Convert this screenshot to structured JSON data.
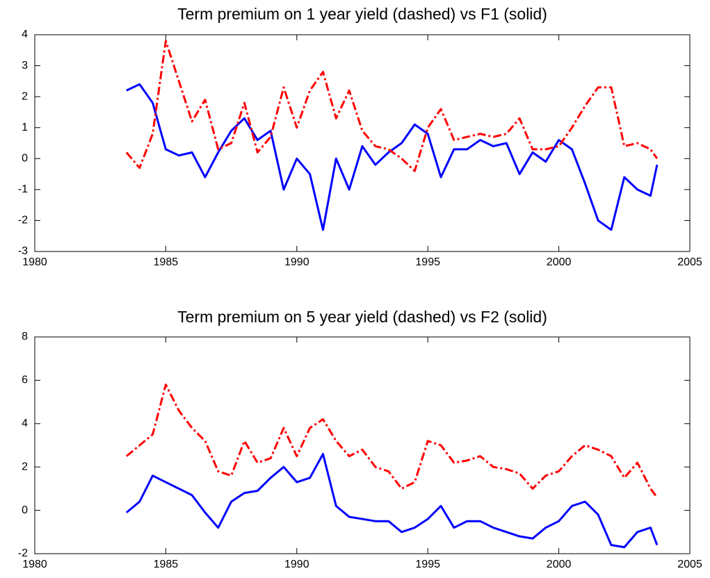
{
  "chart_data": [
    {
      "type": "line",
      "title": "Term premium on 1 year yield (dashed) vs F1 (solid)",
      "x": [
        1983.5,
        1984,
        1984.5,
        1985,
        1985.5,
        1986,
        1986.5,
        1987,
        1987.5,
        1988,
        1988.5,
        1989,
        1989.5,
        1990,
        1990.5,
        1991,
        1991.5,
        1992,
        1992.5,
        1993,
        1993.5,
        1994,
        1994.5,
        1995,
        1995.5,
        1996,
        1996.5,
        1997,
        1997.5,
        1998,
        1998.5,
        1999,
        1999.5,
        2000,
        2000.5,
        2001,
        2001.5,
        2002,
        2002.5,
        2003,
        2003.5,
        2003.75
      ],
      "series": [
        {
          "color": "#0000ff",
          "linestyle": "solid",
          "values": [
            2.2,
            2.4,
            1.8,
            0.3,
            0.1,
            0.2,
            -0.6,
            0.2,
            0.9,
            1.3,
            0.6,
            0.9,
            -1.0,
            0.0,
            -0.5,
            -2.3,
            0.0,
            -1.0,
            0.4,
            -0.2,
            0.2,
            0.5,
            1.1,
            0.8,
            -0.6,
            0.3,
            0.3,
            0.6,
            0.4,
            0.5,
            -0.5,
            0.2,
            -0.1,
            0.6,
            0.3,
            -0.8,
            -2.0,
            -2.3,
            -0.6,
            -1.0,
            -1.2,
            -0.2
          ]
        },
        {
          "color": "#ff0000",
          "linestyle": "dashdot",
          "values": [
            0.2,
            -0.3,
            0.8,
            3.8,
            2.5,
            1.2,
            1.9,
            0.3,
            0.5,
            1.8,
            0.2,
            0.7,
            2.3,
            1.0,
            2.2,
            2.8,
            1.3,
            2.2,
            0.9,
            0.4,
            0.3,
            0.0,
            -0.4,
            1.0,
            1.6,
            0.6,
            0.7,
            0.8,
            0.7,
            0.8,
            1.3,
            0.3,
            0.3,
            0.4,
            1.0,
            1.7,
            2.3,
            2.3,
            0.4,
            0.5,
            0.3,
            0.0
          ]
        }
      ],
      "xlim": [
        1980,
        2005
      ],
      "xticks": [
        1980,
        1985,
        1990,
        1995,
        2000,
        2005
      ],
      "ylim": [
        -3,
        4
      ],
      "yticks": [
        -3,
        -2,
        -1,
        0,
        1,
        2,
        3,
        4
      ]
    },
    {
      "type": "line",
      "title": "Term premium on 5 year yield (dashed) vs F2 (solid)",
      "x": [
        1983.5,
        1984,
        1984.5,
        1985,
        1985.5,
        1986,
        1986.5,
        1987,
        1987.5,
        1988,
        1988.5,
        1989,
        1989.5,
        1990,
        1990.5,
        1991,
        1991.5,
        1992,
        1992.5,
        1993,
        1993.5,
        1994,
        1994.5,
        1995,
        1995.5,
        1996,
        1996.5,
        1997,
        1997.5,
        1998,
        1998.5,
        1999,
        1999.5,
        2000,
        2000.5,
        2001,
        2001.5,
        2002,
        2002.5,
        2003,
        2003.5,
        2003.75
      ],
      "series": [
        {
          "color": "#0000ff",
          "linestyle": "solid",
          "values": [
            -0.1,
            0.4,
            1.6,
            1.3,
            1.0,
            0.7,
            -0.1,
            -0.8,
            0.4,
            0.8,
            0.9,
            1.5,
            2.0,
            1.3,
            1.5,
            2.6,
            0.2,
            -0.3,
            -0.4,
            -0.5,
            -0.5,
            -1.0,
            -0.8,
            -0.4,
            0.2,
            -0.8,
            -0.5,
            -0.5,
            -0.8,
            -1.0,
            -1.2,
            -1.3,
            -0.8,
            -0.5,
            0.2,
            0.4,
            -0.2,
            -1.6,
            -1.7,
            -1.0,
            -0.8,
            -1.6
          ]
        },
        {
          "color": "#ff0000",
          "linestyle": "dashdot",
          "values": [
            2.5,
            3.0,
            3.5,
            5.8,
            4.6,
            3.8,
            3.2,
            1.8,
            1.6,
            3.2,
            2.2,
            2.4,
            3.8,
            2.5,
            3.8,
            4.2,
            3.2,
            2.5,
            2.8,
            2.0,
            1.8,
            1.0,
            1.3,
            3.2,
            3.0,
            2.2,
            2.3,
            2.5,
            2.0,
            1.9,
            1.7,
            1.0,
            1.6,
            1.8,
            2.5,
            3.0,
            2.8,
            2.5,
            1.5,
            2.2,
            1.0,
            0.6
          ]
        }
      ],
      "xlim": [
        1980,
        2005
      ],
      "xticks": [
        1980,
        1985,
        1990,
        1995,
        2000,
        2005
      ],
      "ylim": [
        -2,
        8
      ],
      "yticks": [
        -2,
        0,
        2,
        4,
        6,
        8
      ]
    }
  ]
}
